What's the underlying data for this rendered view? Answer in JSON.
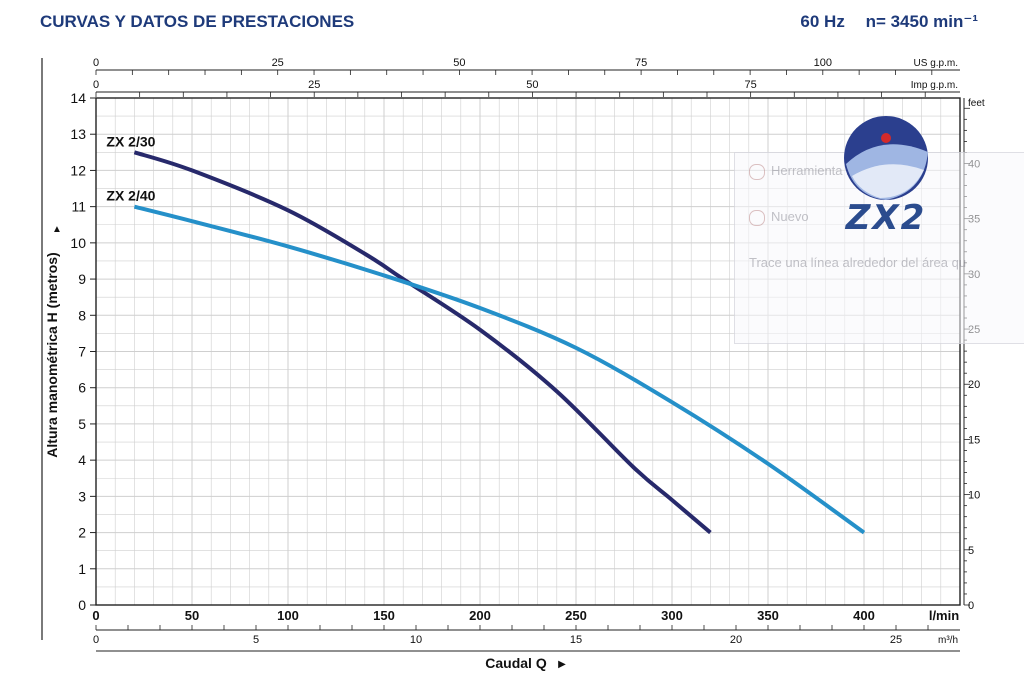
{
  "header": {
    "title": "CURVAS Y DATOS DE PRESTACIONES",
    "frequency": "60 Hz",
    "speed": "n= 3450 min⁻¹"
  },
  "chart_data": {
    "type": "line",
    "title": "CURVAS Y DATOS DE PRESTACIONES",
    "ylabel": "Altura manométrica H (metros)",
    "ylabel_arrow": "▲",
    "xlabel": "Caudal Q",
    "xlabel_arrow": "▶",
    "x_unit": "l/min",
    "xlim": [
      0,
      450
    ],
    "ylim": [
      0,
      14
    ],
    "grid": true,
    "x_ticks": [
      "0",
      "50",
      "100",
      "150",
      "200",
      "250",
      "300",
      "350",
      "400"
    ],
    "y_ticks": [
      "0",
      "1",
      "2",
      "3",
      "4",
      "5",
      "6",
      "7",
      "8",
      "9",
      "10",
      "11",
      "12",
      "13",
      "14"
    ],
    "series": [
      {
        "name": "ZX 2/30",
        "color": "#27296b",
        "x": [
          20,
          50,
          100,
          140,
          160,
          200,
          240,
          280,
          300,
          320
        ],
        "y": [
          12.5,
          12.0,
          10.9,
          9.7,
          9.0,
          7.6,
          5.9,
          3.8,
          2.9,
          2.0
        ]
      },
      {
        "name": "ZX 2/40",
        "color": "#2590c9",
        "x": [
          20,
          50,
          100,
          150,
          200,
          250,
          300,
          350,
          400
        ],
        "y": [
          11.0,
          10.6,
          9.9,
          9.1,
          8.2,
          7.1,
          5.6,
          3.9,
          2.0
        ]
      }
    ],
    "secondary_axes": {
      "us_gpm": {
        "label": "US g.p.m.",
        "ticks": [
          "0",
          "25",
          "50",
          "75",
          "100"
        ]
      },
      "imp_gpm": {
        "label": "Imp g.p.m.",
        "ticks": [
          "0",
          "25",
          "50",
          "75"
        ]
      },
      "m3h": {
        "label": "m³/h",
        "ticks": [
          "0",
          "5",
          "10",
          "15",
          "20",
          "25"
        ]
      },
      "feet": {
        "label": "feet",
        "ticks": [
          "0",
          "5",
          "10",
          "15",
          "20",
          "25",
          "30",
          "35",
          "40"
        ]
      }
    }
  },
  "overlay": {
    "tool_title": "Herramienta Recortes",
    "new_label": "Nuevo",
    "hint": "Trace una línea alrededor del área qu"
  },
  "logo": {
    "text": "ZX2"
  }
}
